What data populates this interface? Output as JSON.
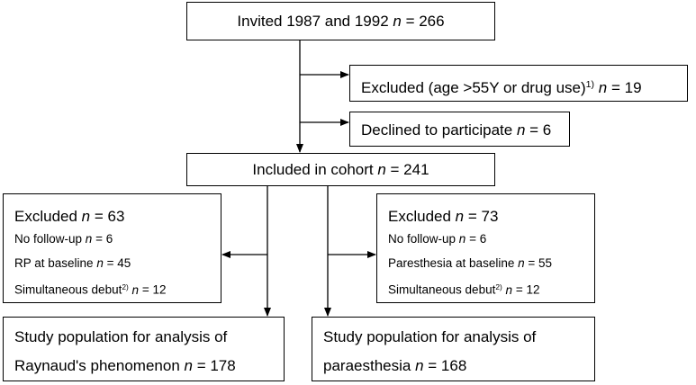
{
  "nodes": [
    {
      "title": [
        {
          "text": "Invited 1987 and 1992 "
        },
        {
          "text": "n",
          "style": "italic"
        },
        {
          "text": " = 266"
        }
      ]
    },
    {
      "title": [
        {
          "text": "Excluded (age >55Y or drug use)"
        },
        {
          "text": "1)",
          "style": "sup"
        },
        {
          "text": "n",
          "style": "italic"
        },
        {
          "text": " = 19"
        }
      ]
    },
    {
      "title": [
        {
          "text": "Declined to participate "
        },
        {
          "text": "n",
          "style": "italic"
        },
        {
          "text": " = 6"
        }
      ]
    },
    {
      "title": [
        {
          "text": "Included in cohort "
        },
        {
          "text": "n",
          "style": "italic"
        },
        {
          "text": " = 241"
        }
      ]
    },
    {
      "title": [
        {
          "text": "Excluded "
        },
        {
          "text": "n",
          "style": "italic"
        },
        {
          "text": " = 63"
        }
      ],
      "items": [
        [
          {
            "text": "No follow-up "
          },
          {
            "text": "n",
            "style": "italic"
          },
          {
            "text": " = 6"
          }
        ],
        [
          {
            "text": "RP at baseline "
          },
          {
            "text": "n",
            "style": "italic"
          },
          {
            "text": " = 45"
          }
        ],
        [
          {
            "text": "Simultaneous debut"
          },
          {
            "text": "2)",
            "style": "sup"
          },
          {
            "text": "n",
            "style": "italic"
          },
          {
            "text": " = 12"
          }
        ]
      ]
    },
    {
      "title": [
        {
          "text": "Excluded "
        },
        {
          "text": "n",
          "style": "italic"
        },
        {
          "text": " = 73"
        }
      ],
      "items": [
        [
          {
            "text": "No follow-up "
          },
          {
            "text": "n",
            "style": "italic"
          },
          {
            "text": " = 6"
          }
        ],
        [
          {
            "text": "Paresthesia at baseline "
          },
          {
            "text": "n",
            "style": "italic"
          },
          {
            "text": " = 55"
          }
        ],
        [
          {
            "text": "Simultaneous debut"
          },
          {
            "text": "2)",
            "style": "sup"
          },
          {
            "text": "n",
            "style": "italic"
          },
          {
            "text": " = 12"
          }
        ]
      ]
    },
    {
      "lines": [
        [
          {
            "text": "Study population for analysis of"
          }
        ],
        [
          {
            "text": "Raynaud's phenomenon "
          },
          {
            "text": "n",
            "style": "italic"
          },
          {
            "text": " = 178"
          }
        ]
      ]
    },
    {
      "lines": [
        [
          {
            "text": "Study population for analysis of"
          }
        ],
        [
          {
            "text": "paraesthesia "
          },
          {
            "text": "n",
            "style": "italic"
          },
          {
            "text": " = 168"
          }
        ]
      ]
    }
  ]
}
